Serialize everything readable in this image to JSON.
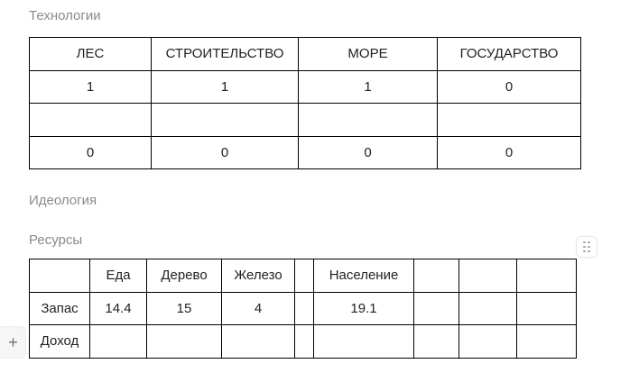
{
  "page": {
    "background": "#ffffff",
    "heading_color": "#8a8a8a",
    "table_border_color": "#000000"
  },
  "sections": {
    "technologies": {
      "title": "Технологии",
      "table": {
        "headers": [
          "ЛЕС",
          "СТРОИТЕЛЬСТВО",
          "МОРЕ",
          "ГОСУДАРСТВО"
        ],
        "rows": [
          [
            "1",
            "1",
            "1",
            "0"
          ],
          [
            "",
            "",
            "",
            ""
          ],
          [
            "0",
            "0",
            "0",
            "0"
          ]
        ]
      }
    },
    "ideology": {
      "title": "Идеология"
    },
    "resources": {
      "title": "Ресурсы",
      "table": {
        "headers": [
          "",
          "Еда",
          "Дерево",
          "Железо",
          "",
          "Население",
          "",
          "",
          ""
        ],
        "rows": [
          [
            "Запас",
            "14.4",
            "15",
            "4",
            "",
            "19.1",
            "",
            "",
            ""
          ],
          [
            "Доход",
            "",
            "",
            "",
            "",
            "",
            "",
            "",
            ""
          ]
        ]
      }
    }
  },
  "controls": {
    "add_row_label": "+",
    "drag_handle_icon": "six-dots"
  }
}
